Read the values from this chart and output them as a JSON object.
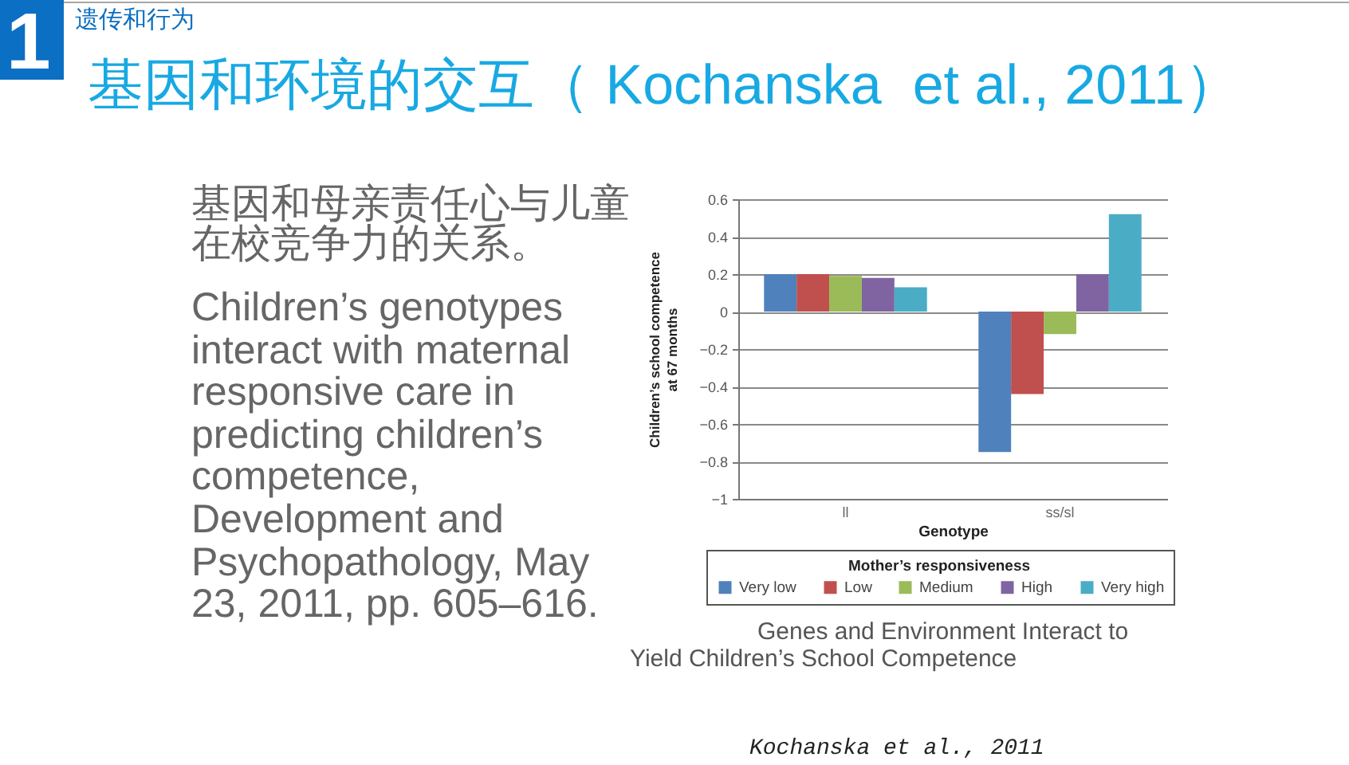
{
  "chart_data": {
    "type": "bar",
    "title": "基因和环境的交互（ Kochanska  et al., 2011）",
    "xlabel": "Genotype",
    "ylabel": "Children’s school competence\nat 67 months",
    "legend_title": "Mother’s responsiveness",
    "categories": [
      "ll",
      "ss/sl"
    ],
    "series": [
      {
        "name": "Very low",
        "color": "#4f81bd",
        "values": [
          0.2,
          -0.75
        ]
      },
      {
        "name": "Low",
        "color": "#c0504d",
        "values": [
          0.2,
          -0.44
        ]
      },
      {
        "name": "Medium",
        "color": "#9bbb59",
        "values": [
          0.19,
          -0.12
        ]
      },
      {
        "name": "High",
        "color": "#8064a2",
        "values": [
          0.18,
          0.2
        ]
      },
      {
        "name": "Very high",
        "color": "#4bacc6",
        "values": [
          0.13,
          0.52
        ]
      }
    ],
    "ylim": [
      -1,
      0.6
    ],
    "yticks": [
      -1,
      -0.8,
      -0.6,
      -0.4,
      -0.2,
      0,
      0.2,
      0.4,
      0.6
    ],
    "grid": "y",
    "legend": "bottom",
    "annotations": [
      "遗传和行为",
      "1",
      "基因和母亲责任心与儿童在校竞争力的关系。",
      "Children’s genotypes interact with maternal responsive care in predicting children’s competence, Development and Psychopathology, May 23, 2011, pp. 605–616.",
      "Genes and Environment Interact to Yield Children’s School Competence",
      "Kochanska et al., 2011"
    ]
  }
}
